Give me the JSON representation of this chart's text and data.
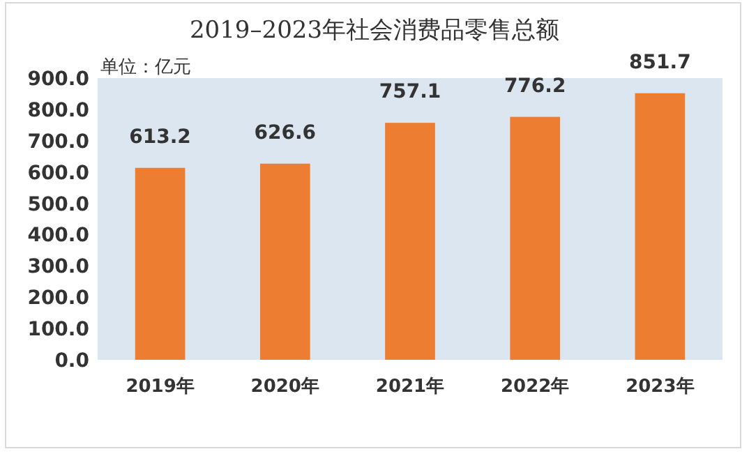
{
  "chart_data": {
    "type": "bar",
    "title": "2019–2023年社会消费品零售总额",
    "categories": [
      "2019年",
      "2020年",
      "2021年",
      "2022年",
      "2023年"
    ],
    "values": [
      613.2,
      626.6,
      757.1,
      776.2,
      851.7
    ],
    "color": "#ed7d31",
    "ylim": [
      0,
      900
    ],
    "yticks": [
      {
        "value": 0,
        "label": "0.0"
      },
      {
        "value": 100,
        "label": "100.0"
      },
      {
        "value": 200,
        "label": "200.0"
      },
      {
        "value": 300,
        "label": "300.0"
      },
      {
        "value": 400,
        "label": "400.0"
      },
      {
        "value": 500,
        "label": "500.0"
      },
      {
        "value": 600,
        "label": "600.0"
      },
      {
        "value": 700,
        "label": "700.0"
      },
      {
        "value": 800,
        "label": "800.0"
      },
      {
        "value": 900,
        "label": "900.0"
      }
    ],
    "data_labels": true,
    "grid": false,
    "annotations": [
      "单位：亿元"
    ]
  }
}
